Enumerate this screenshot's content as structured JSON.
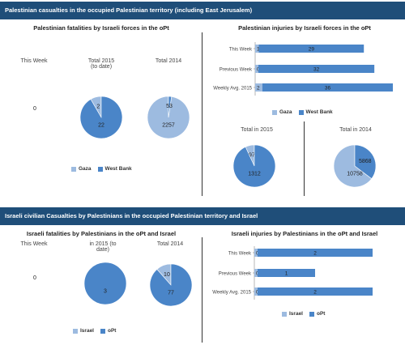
{
  "colors": {
    "band": "#1f4e79",
    "primary": "#4a85c8",
    "secondary": "#9dbbe0"
  },
  "section1": {
    "title": "Palestinian casualties in the occupied Palestinian territory (including East Jerusalem)",
    "fatalities": {
      "title": "Palestinian fatalities by Israeli forces in the oPt",
      "this_week_label": "This Week",
      "this_week_value": "0",
      "total_2015_label": "Total 2015\n(to date)",
      "total_2014_label": "Total 2014",
      "legend": [
        "Gaza",
        "West Bank"
      ]
    },
    "injuries": {
      "title": "Palestinian injuries by Israeli forces in the oPt",
      "legend": [
        "Gaza",
        "West Bank"
      ],
      "total_2015_label": "Total in 2015",
      "total_2014_label": "Total in 2014"
    }
  },
  "section2": {
    "title": "Israeli civilian Casualties by Palestinians in the occupied Palestinian territory and Israel",
    "fatalities": {
      "title": "Israeli fatalities by Palestinians in the oPt and Israel",
      "this_week_label": "This Week",
      "this_week_value": "0",
      "total_2015_label": "in 2015 (to\ndate)",
      "total_2014_label": "Total 2014",
      "legend": [
        "Israel",
        "oPt"
      ]
    },
    "injuries": {
      "title": "Israeli injuries by Palestinians in the oPt and Israel",
      "legend": [
        "Israel",
        "oPt"
      ]
    }
  },
  "chart_data": [
    {
      "id": "pal-fat-2015",
      "type": "pie",
      "labels": [
        "Gaza",
        "West Bank"
      ],
      "values": [
        2,
        22
      ]
    },
    {
      "id": "pal-fat-2014",
      "type": "pie",
      "labels": [
        "Gaza",
        "West Bank"
      ],
      "values": [
        2257,
        53
      ]
    },
    {
      "id": "pal-inj-bars",
      "type": "bar",
      "orientation": "horizontal",
      "stacked": true,
      "categories": [
        "This Week",
        "Previous Week",
        "Weekly Avg. 2015"
      ],
      "series": [
        {
          "name": "Gaza",
          "values": [
            1,
            0,
            2
          ]
        },
        {
          "name": "West Bank",
          "values": [
            29,
            32,
            36
          ]
        }
      ]
    },
    {
      "id": "pal-inj-2015",
      "type": "pie",
      "labels": [
        "Gaza",
        "West Bank"
      ],
      "values": [
        97,
        1312
      ]
    },
    {
      "id": "pal-inj-2014",
      "type": "pie",
      "labels": [
        "Gaza",
        "West Bank"
      ],
      "values": [
        10758,
        5868
      ]
    },
    {
      "id": "isr-fat-2015",
      "type": "pie",
      "labels": [
        "Israel",
        "oPt"
      ],
      "values": [
        0,
        3
      ]
    },
    {
      "id": "isr-fat-2014",
      "type": "pie",
      "labels": [
        "Israel",
        "oPt"
      ],
      "values": [
        10,
        77
      ]
    },
    {
      "id": "isr-inj-bars",
      "type": "bar",
      "orientation": "horizontal",
      "stacked": true,
      "categories": [
        "This Week",
        "Previous Week",
        "Weekly Avg. 2015"
      ],
      "series": [
        {
          "name": "Israel",
          "values": [
            0,
            0,
            0
          ]
        },
        {
          "name": "oPt",
          "values": [
            2,
            1,
            2
          ]
        }
      ]
    }
  ]
}
